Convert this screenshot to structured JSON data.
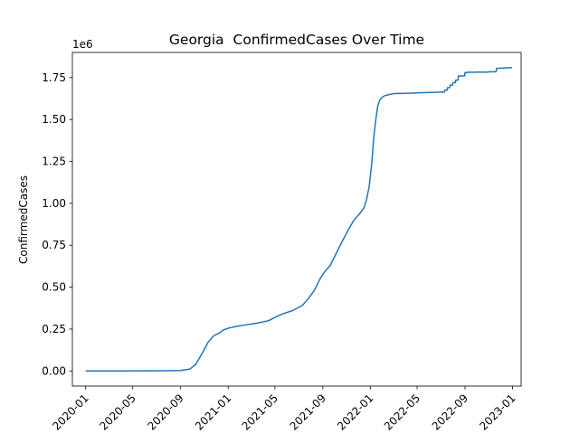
{
  "chart_data": {
    "type": "line",
    "title": "Georgia  ConfirmedCases Over Time",
    "xlabel": "",
    "ylabel": "ConfirmedCases",
    "y_offset_label": "1e6",
    "y_scale_factor": 1000000,
    "xlim": [
      "2019-11-28",
      "2023-01-23"
    ],
    "ylim": [
      -90000,
      1900000
    ],
    "grid": false,
    "line_color": "#1f77b4",
    "x_ticks": [
      {
        "date": "2020-01-01",
        "label": "2020-01"
      },
      {
        "date": "2020-05-01",
        "label": "2020-05"
      },
      {
        "date": "2020-09-01",
        "label": "2020-09"
      },
      {
        "date": "2021-01-01",
        "label": "2021-01"
      },
      {
        "date": "2021-05-01",
        "label": "2021-05"
      },
      {
        "date": "2021-09-01",
        "label": "2021-09"
      },
      {
        "date": "2022-01-01",
        "label": "2022-01"
      },
      {
        "date": "2022-05-01",
        "label": "2022-05"
      },
      {
        "date": "2022-09-01",
        "label": "2022-09"
      },
      {
        "date": "2023-01-01",
        "label": "2023-01"
      }
    ],
    "y_ticks": [
      {
        "value": 0,
        "label": "0.00"
      },
      {
        "value": 250000,
        "label": "0.25"
      },
      {
        "value": 500000,
        "label": "0.50"
      },
      {
        "value": 750000,
        "label": "0.75"
      },
      {
        "value": 1000000,
        "label": "1.00"
      },
      {
        "value": 1250000,
        "label": "1.25"
      },
      {
        "value": 1500000,
        "label": "1.50"
      },
      {
        "value": 1750000,
        "label": "1.75"
      }
    ],
    "series": [
      {
        "x": [
          "2020-01-01",
          "2020-04-01",
          "2020-08-01",
          "2020-09-01",
          "2020-09-25",
          "2020-10-10",
          "2020-10-25",
          "2020-11-10",
          "2020-11-25",
          "2020-12-08",
          "2020-12-20",
          "2021-01-01",
          "2021-01-20",
          "2021-02-15",
          "2021-03-15",
          "2021-04-15",
          "2021-05-01",
          "2021-05-20",
          "2021-06-15",
          "2021-07-10",
          "2021-07-25",
          "2021-08-10",
          "2021-08-25",
          "2021-09-05",
          "2021-09-20",
          "2021-10-05",
          "2021-10-20",
          "2021-11-05",
          "2021-11-20",
          "2021-12-05",
          "2021-12-15",
          "2021-12-22",
          "2021-12-29",
          "2022-01-05",
          "2022-01-10",
          "2022-01-15",
          "2022-01-20",
          "2022-01-25",
          "2022-01-30",
          "2022-02-05",
          "2022-02-12",
          "2022-02-20",
          "2022-03-05",
          "2022-03-20",
          "2022-04-15",
          "2022-05-15",
          "2022-06-15",
          "2022-07-10",
          "2022-07-11",
          "2022-07-17",
          "2022-07-18",
          "2022-07-24",
          "2022-07-25",
          "2022-07-31",
          "2022-08-01",
          "2022-08-07",
          "2022-08-08",
          "2022-08-14",
          "2022-08-15",
          "2022-08-31",
          "2022-09-01",
          "2022-09-07",
          "2022-09-08",
          "2022-09-30",
          "2022-10-01",
          "2022-10-31",
          "2022-11-01",
          "2022-11-20",
          "2022-11-21",
          "2022-12-31"
        ],
        "y": [
          0,
          500,
          2000,
          3000,
          12000,
          40000,
          100000,
          170000,
          210000,
          225000,
          245000,
          255000,
          265000,
          275000,
          285000,
          300000,
          320000,
          340000,
          360000,
          390000,
          430000,
          480000,
          550000,
          590000,
          630000,
          700000,
          770000,
          840000,
          900000,
          940000,
          970000,
          1020000,
          1100000,
          1250000,
          1400000,
          1500000,
          1580000,
          1615000,
          1630000,
          1640000,
          1645000,
          1650000,
          1655000,
          1655000,
          1657000,
          1660000,
          1662000,
          1664000,
          1675000,
          1675000,
          1690000,
          1690000,
          1705000,
          1705000,
          1720000,
          1720000,
          1735000,
          1735000,
          1760000,
          1760000,
          1780000,
          1780000,
          1782000,
          1782000,
          1783000,
          1783000,
          1785000,
          1785000,
          1805000,
          1810000
        ]
      }
    ]
  }
}
